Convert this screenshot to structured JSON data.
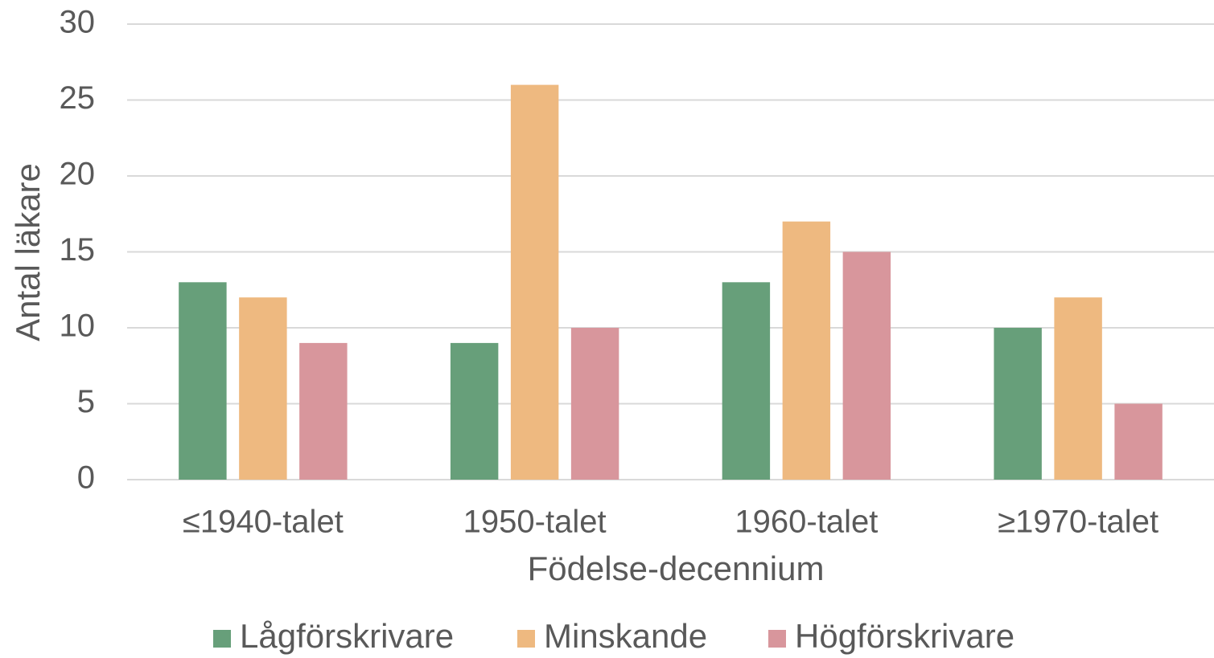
{
  "chart_data": {
    "type": "bar",
    "x_label": "Födelse-decennium",
    "y_label": "Antal läkare",
    "categories": [
      "≤1940-talet",
      "1950-talet",
      "1960-talet",
      "≥1970-talet"
    ],
    "series": [
      {
        "name": "Lågförskrivare",
        "color": "#679f7a",
        "values": [
          13,
          9,
          13,
          10
        ]
      },
      {
        "name": "Minskande",
        "color": "#eeb980",
        "values": [
          12,
          26,
          17,
          12
        ]
      },
      {
        "name": "Högförskrivare",
        "color": "#d8969c",
        "values": [
          9,
          10,
          15,
          5
        ]
      }
    ],
    "ylim": [
      0,
      30
    ],
    "yticks": [
      0,
      5,
      10,
      15,
      20,
      25,
      30
    ],
    "grid": true,
    "legend": "bottom"
  }
}
